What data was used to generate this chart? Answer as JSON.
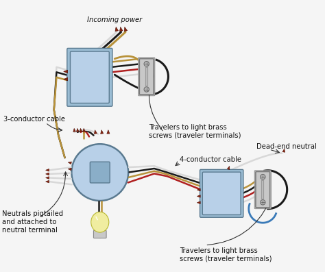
{
  "background_color": "#f5f5f5",
  "labels": {
    "incoming_power": "Incoming power",
    "three_conductor": "3-conductor cable",
    "travelers_top": "Travelers to light brass\nscrews (traveler terminals)",
    "four_conductor": "4-conductor cable",
    "dead_end": "Dead-end neutral",
    "neutrals": "Neutrals pigtailed\nand attached to\nneutral terminal",
    "travelers_bottom": "Travelers to light brass\nscrews (traveler terminals)"
  },
  "box_color": "#9bbdd4",
  "box_color2": "#b8d0e8",
  "wire_white": "#d8d8d8",
  "wire_black": "#1a1a1a",
  "wire_red": "#b02020",
  "wire_bare": "#b8923a",
  "wire_blue": "#3a7ab8",
  "connector_color": "#8b2510",
  "switch_body": "#c8c8c8",
  "switch_border": "#888888",
  "bulb_glass": "#f0eda0",
  "bulb_base": "#d0d0d0",
  "text_color": "#111111",
  "arrow_color": "#333333",
  "figsize": [
    4.74,
    3.97
  ],
  "dpi": 100
}
